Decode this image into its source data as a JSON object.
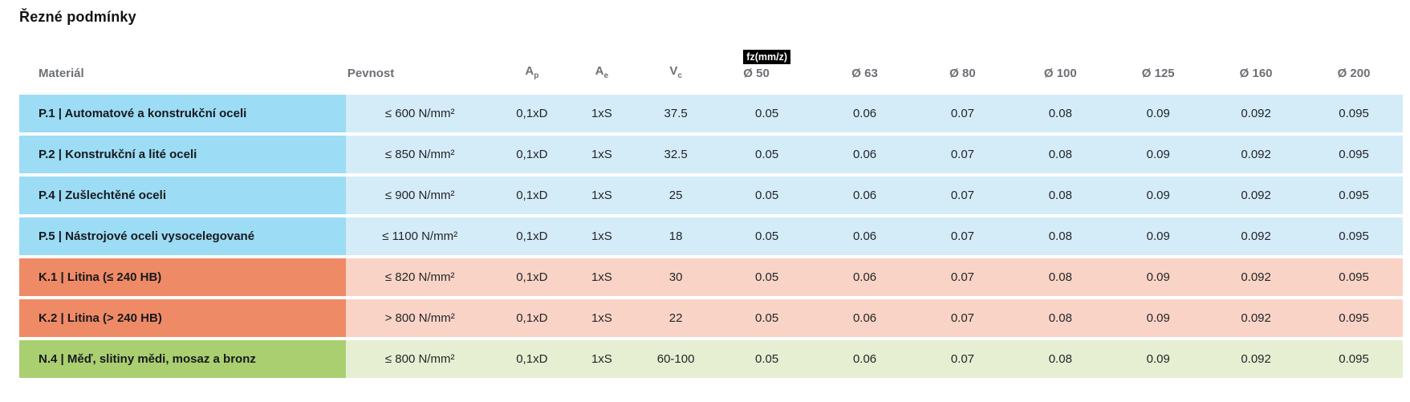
{
  "title": "Řezné podmínky",
  "table": {
    "headers": {
      "material": "Materiál",
      "pevnost": "Pevnost",
      "ap_base": "A",
      "ap_sub": "p",
      "ae_base": "A",
      "ae_sub": "e",
      "vc_base": "V",
      "vc_sub": "c",
      "fz_badge": "fz(mm/z)",
      "diameters": [
        "Ø 50",
        "Ø 63",
        "Ø 80",
        "Ø 100",
        "Ø 125",
        "Ø 160",
        "Ø 200"
      ]
    },
    "rows": [
      {
        "group": "p",
        "label": "P.1 | Automatové a konstrukční oceli",
        "pevnost": "≤ 600 N/mm²",
        "ap": "0,1xD",
        "ae": "1xS",
        "vc": "37.5",
        "fz": [
          "0.05",
          "0.06",
          "0.07",
          "0.08",
          "0.09",
          "0.092",
          "0.095"
        ]
      },
      {
        "group": "p",
        "label": "P.2 | Konstrukční a lité oceli",
        "pevnost": "≤ 850 N/mm²",
        "ap": "0,1xD",
        "ae": "1xS",
        "vc": "32.5",
        "fz": [
          "0.05",
          "0.06",
          "0.07",
          "0.08",
          "0.09",
          "0.092",
          "0.095"
        ]
      },
      {
        "group": "p",
        "label": "P.4 | Zušlechtěné oceli",
        "pevnost": "≤ 900 N/mm²",
        "ap": "0,1xD",
        "ae": "1xS",
        "vc": "25",
        "fz": [
          "0.05",
          "0.06",
          "0.07",
          "0.08",
          "0.09",
          "0.092",
          "0.095"
        ]
      },
      {
        "group": "p",
        "label": "P.5 | Nástrojové oceli vysocelegované",
        "pevnost": "≤ 1100 N/mm²",
        "ap": "0,1xD",
        "ae": "1xS",
        "vc": "18",
        "fz": [
          "0.05",
          "0.06",
          "0.07",
          "0.08",
          "0.09",
          "0.092",
          "0.095"
        ]
      },
      {
        "group": "k",
        "label": "K.1 | Litina (≤ 240 HB)",
        "pevnost": "≤ 820 N/mm²",
        "ap": "0,1xD",
        "ae": "1xS",
        "vc": "30",
        "fz": [
          "0.05",
          "0.06",
          "0.07",
          "0.08",
          "0.09",
          "0.092",
          "0.095"
        ]
      },
      {
        "group": "k",
        "label": "K.2 | Litina (> 240 HB)",
        "pevnost": "> 800 N/mm²",
        "ap": "0,1xD",
        "ae": "1xS",
        "vc": "22",
        "fz": [
          "0.05",
          "0.06",
          "0.07",
          "0.08",
          "0.09",
          "0.092",
          "0.095"
        ]
      },
      {
        "group": "n",
        "label": "N.4 | Měď, slitiny mědi, mosaz a bronz",
        "pevnost": "≤ 800 N/mm²",
        "ap": "0,1xD",
        "ae": "1xS",
        "vc": "60-100",
        "fz": [
          "0.05",
          "0.06",
          "0.07",
          "0.08",
          "0.09",
          "0.092",
          "0.095"
        ]
      }
    ],
    "colors": {
      "p_label": "#9cdcf4",
      "p_cell": "#d4ecf8",
      "k_label": "#ef8a66",
      "k_cell": "#f9d4c6",
      "n_label": "#aacf70",
      "n_cell": "#e6efd2",
      "header_text": "#6d7075",
      "label_text": "#17191d",
      "value_text": "#232528",
      "badge_bg": "#000000",
      "badge_text": "#ffffff"
    }
  }
}
